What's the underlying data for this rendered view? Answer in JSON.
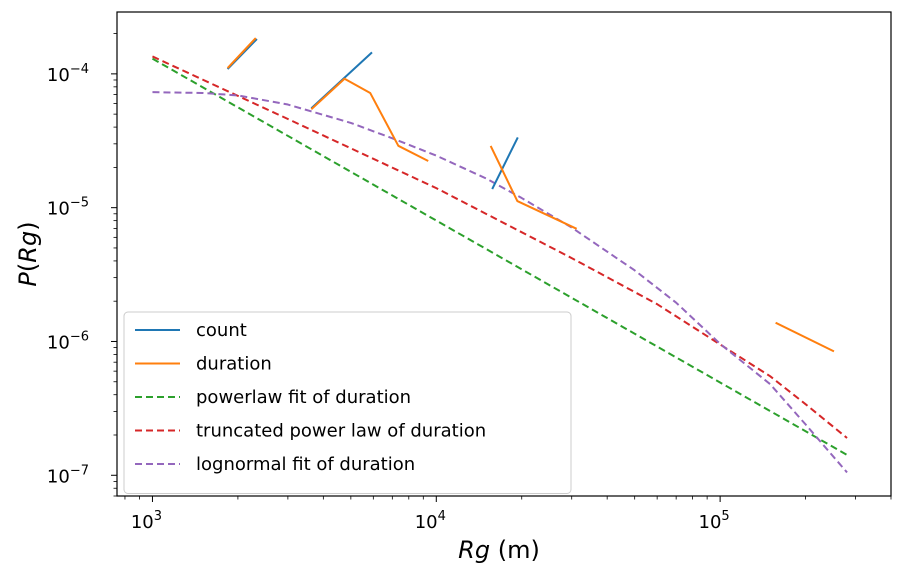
{
  "chart_data": {
    "type": "line",
    "xlabel": "Rg (m)",
    "ylabel": "P(Rg)",
    "x_scale": "log",
    "y_scale": "log",
    "xlim": [
      750,
      400000
    ],
    "ylim": [
      7e-08,
      0.00029
    ],
    "grid": false,
    "legend_position": "lower-left",
    "x_ticks": [
      {
        "value": 1000,
        "base": "10",
        "exp": "3"
      },
      {
        "value": 10000,
        "base": "10",
        "exp": "4"
      },
      {
        "value": 100000,
        "base": "10",
        "exp": "5"
      }
    ],
    "y_ticks": [
      {
        "value": 0.0001,
        "base": "10",
        "exp": "−4"
      },
      {
        "value": 1e-05,
        "base": "10",
        "exp": "−5"
      },
      {
        "value": 1e-06,
        "base": "10",
        "exp": "−6"
      },
      {
        "value": 1e-07,
        "base": "10",
        "exp": "−7"
      }
    ],
    "series": [
      {
        "name": "count",
        "color": "#1f77b4",
        "style": "solid",
        "segments": [
          [
            [
              1850,
              0.00011
            ],
            [
              2320,
              0.00018
            ]
          ],
          [
            [
              3650,
              5.6e-05
            ],
            [
              5900,
              0.000143
            ]
          ],
          [
            [
              15800,
              1.4e-05
            ],
            [
              19300,
              3.3e-05
            ]
          ]
        ]
      },
      {
        "name": "duration",
        "color": "#ff7f0e",
        "style": "solid",
        "segments": [
          [
            [
              1850,
              0.000112
            ],
            [
              2300,
              0.000183
            ]
          ],
          [
            [
              3650,
              5.5e-05
            ],
            [
              4750,
              9.2e-05
            ],
            [
              5850,
              7.2e-05
            ],
            [
              7350,
              2.9e-05
            ],
            [
              9300,
              2.25e-05
            ]
          ],
          [
            [
              15600,
              2.85e-05
            ],
            [
              19300,
              1.12e-05
            ],
            [
              31000,
              7e-06
            ]
          ],
          [
            [
              158000,
              1.37e-06
            ],
            [
              250000,
              8.5e-07
            ]
          ]
        ]
      },
      {
        "name": "powerlaw fit of duration",
        "color": "#2ca02c",
        "style": "dashed",
        "points": [
          [
            1000,
            0.00013
          ],
          [
            280000,
            1.42e-07
          ]
        ]
      },
      {
        "name": "truncated power law of duration",
        "color": "#d62728",
        "style": "dashed",
        "points": [
          [
            1000,
            0.000135
          ],
          [
            3000,
            4.6e-05
          ],
          [
            10000,
            1.4e-05
          ],
          [
            30000,
            4.2e-06
          ],
          [
            60000,
            1.9e-06
          ],
          [
            100000,
            9.5e-07
          ],
          [
            150000,
            5.5e-07
          ],
          [
            200000,
            3.4e-07
          ],
          [
            280000,
            1.9e-07
          ]
        ]
      },
      {
        "name": "lognormal fit of duration",
        "color": "#9467bd",
        "style": "dashed",
        "points": [
          [
            1000,
            7.3e-05
          ],
          [
            1500,
            7.2e-05
          ],
          [
            2000,
            6.9e-05
          ],
          [
            3000,
            5.9e-05
          ],
          [
            5000,
            4.3e-05
          ],
          [
            7000,
            3.3e-05
          ],
          [
            10000,
            2.45e-05
          ],
          [
            15000,
            1.65e-05
          ],
          [
            20000,
            1.18e-05
          ],
          [
            30000,
            7.1e-06
          ],
          [
            50000,
            3.4e-06
          ],
          [
            70000,
            1.95e-06
          ],
          [
            100000,
            9.6e-07
          ],
          [
            150000,
            4.8e-07
          ],
          [
            200000,
            2.4e-07
          ],
          [
            280000,
            1.05e-07
          ]
        ]
      }
    ]
  }
}
